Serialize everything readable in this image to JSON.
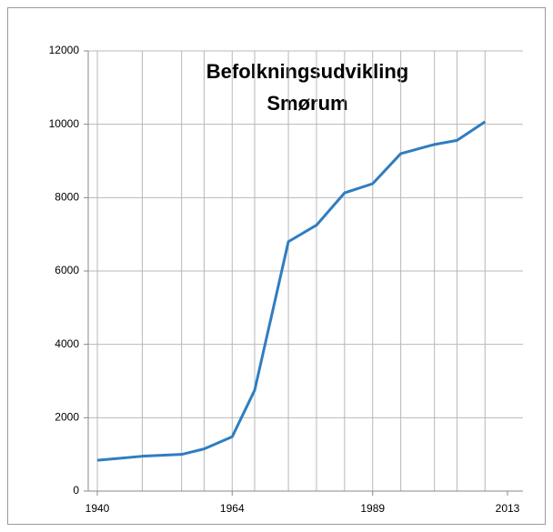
{
  "chart_data": {
    "type": "line",
    "title": [
      "Befolkningsudvikling",
      "Smørum"
    ],
    "x": [
      1940,
      1948,
      1955,
      1959,
      1964,
      1968,
      1974,
      1979,
      1984,
      1989,
      1994,
      2000,
      2004,
      2009
    ],
    "series": [
      {
        "name": "Smørum",
        "color": "#2f7dc1",
        "values": [
          840,
          950,
          1000,
          1150,
          1480,
          2750,
          6800,
          7250,
          8130,
          8380,
          9200,
          9450,
          9560,
          10070
        ]
      }
    ],
    "xlim": [
      1940,
      2013
    ],
    "xticks": [
      1940,
      1964,
      1989,
      2013
    ],
    "ylim": [
      0,
      12000
    ],
    "yticks": [
      0,
      2000,
      4000,
      6000,
      8000,
      10000,
      12000
    ],
    "grid": true
  }
}
